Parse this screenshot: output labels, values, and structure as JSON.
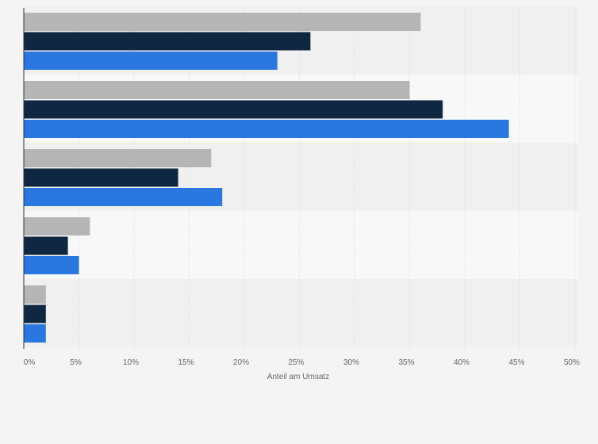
{
  "chart_data": {
    "type": "bar",
    "orientation": "horizontal",
    "categories": [
      "",
      "",
      "",
      "",
      ""
    ],
    "series": [
      {
        "color": "#b5b5b5",
        "values": [
          36,
          35,
          17,
          6,
          2
        ]
      },
      {
        "color": "#0f2741",
        "values": [
          26,
          38,
          14,
          4,
          2
        ]
      },
      {
        "color": "#2a77e0",
        "values": [
          23,
          44,
          18,
          5,
          2
        ]
      }
    ],
    "xlabel": "Anteil am Umsatz",
    "ylabel": "",
    "title": "",
    "xlim": [
      0,
      50
    ],
    "x_ticks": [
      0,
      5,
      10,
      15,
      20,
      25,
      30,
      35,
      40,
      45,
      50
    ],
    "x_tick_labels": [
      "0%",
      "5%",
      "10%",
      "15%",
      "20%",
      "25%",
      "30%",
      "35%",
      "40%",
      "45%",
      "50%"
    ],
    "grid": true,
    "legend": "none"
  },
  "colors": {
    "background": "#f4f4f4",
    "band_dark": "#f0f0f0",
    "band_light": "#f8f8f8",
    "gridline": "#d8d8d8",
    "axis": "#333333"
  }
}
